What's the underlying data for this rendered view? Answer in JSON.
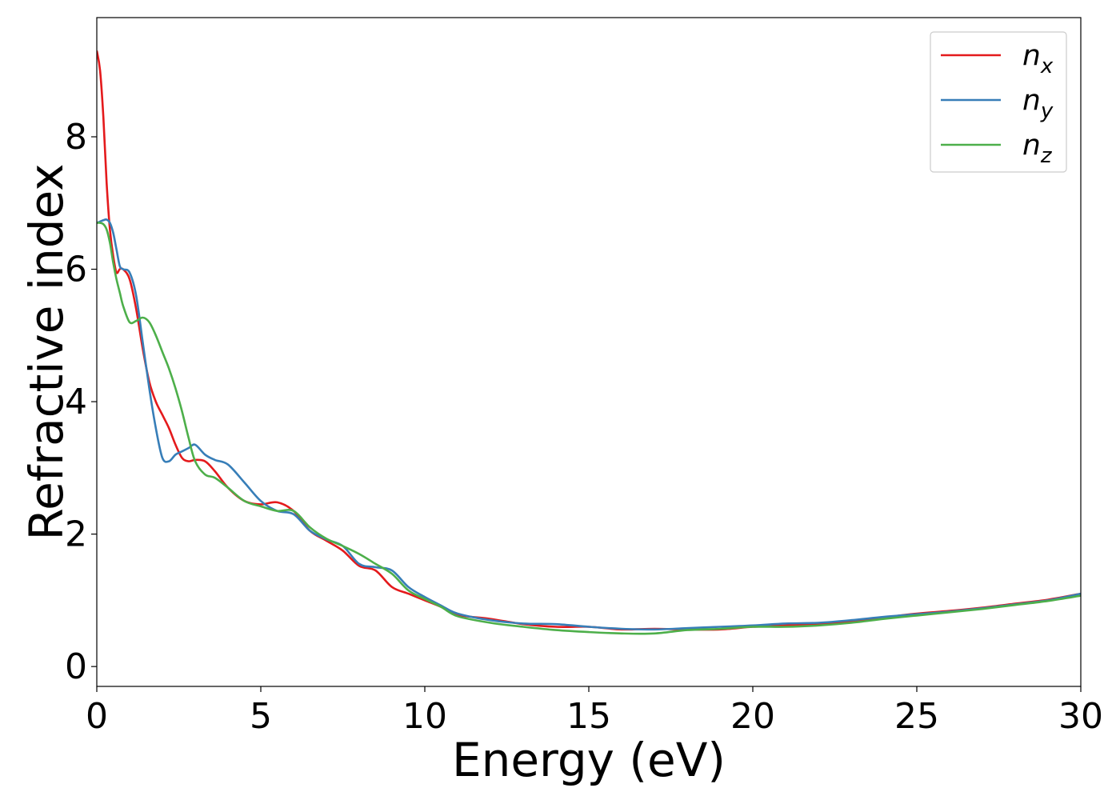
{
  "chart_data": {
    "type": "line",
    "title": "",
    "xlabel": "Energy (eV)",
    "ylabel": "Refractive index",
    "xlim": [
      0,
      30
    ],
    "ylim": [
      -0.3,
      9.8
    ],
    "xticks": [
      0,
      5,
      10,
      15,
      20,
      25,
      30
    ],
    "yticks": [
      0,
      2,
      4,
      6,
      8
    ],
    "grid": false,
    "legend_position": "top-right",
    "series": [
      {
        "name": "n",
        "subscript": "x",
        "color": "#e41a1c",
        "x": [
          0,
          0.1,
          0.2,
          0.3,
          0.4,
          0.5,
          0.6,
          0.7,
          0.8,
          1.0,
          1.2,
          1.4,
          1.6,
          1.8,
          2.0,
          2.2,
          2.4,
          2.6,
          2.8,
          3.0,
          3.3,
          3.6,
          4.0,
          4.5,
          5.0,
          5.5,
          6.0,
          6.5,
          7.0,
          7.5,
          8.0,
          8.5,
          9.0,
          9.5,
          10.0,
          10.5,
          11.0,
          12.0,
          13.0,
          14.0,
          15.0,
          16.0,
          17.0,
          18.0,
          19.0,
          20.0,
          21.0,
          22.0,
          23.0,
          24.0,
          25.0,
          26.0,
          27.0,
          28.0,
          29.0,
          30.0
        ],
        "y": [
          9.3,
          9.0,
          8.3,
          7.3,
          6.6,
          6.2,
          5.95,
          6.0,
          6.0,
          5.85,
          5.4,
          4.8,
          4.3,
          4.0,
          3.8,
          3.6,
          3.35,
          3.15,
          3.1,
          3.12,
          3.1,
          2.95,
          2.7,
          2.5,
          2.45,
          2.48,
          2.35,
          2.05,
          1.9,
          1.75,
          1.52,
          1.45,
          1.2,
          1.1,
          1.0,
          0.9,
          0.78,
          0.72,
          0.64,
          0.6,
          0.6,
          0.56,
          0.57,
          0.56,
          0.56,
          0.6,
          0.62,
          0.64,
          0.68,
          0.74,
          0.8,
          0.84,
          0.89,
          0.95,
          1.01,
          1.1
        ]
      },
      {
        "name": "n",
        "subscript": "y",
        "color": "#377eb8",
        "x": [
          0,
          0.1,
          0.2,
          0.3,
          0.4,
          0.5,
          0.6,
          0.7,
          0.8,
          1.0,
          1.2,
          1.4,
          1.6,
          1.8,
          2.0,
          2.2,
          2.4,
          2.6,
          2.8,
          3.0,
          3.3,
          3.6,
          4.0,
          4.5,
          5.0,
          5.5,
          6.0,
          6.5,
          7.0,
          7.5,
          8.0,
          8.5,
          9.0,
          9.5,
          10.0,
          10.5,
          11.0,
          12.0,
          13.0,
          14.0,
          15.0,
          16.0,
          17.0,
          18.0,
          19.0,
          20.0,
          21.0,
          22.0,
          23.0,
          24.0,
          25.0,
          26.0,
          27.0,
          28.0,
          29.0,
          30.0
        ],
        "y": [
          6.7,
          6.72,
          6.74,
          6.75,
          6.7,
          6.55,
          6.3,
          6.05,
          6.0,
          5.95,
          5.6,
          4.9,
          4.2,
          3.6,
          3.15,
          3.1,
          3.2,
          3.25,
          3.3,
          3.35,
          3.2,
          3.12,
          3.05,
          2.78,
          2.5,
          2.35,
          2.3,
          2.05,
          1.92,
          1.82,
          1.55,
          1.5,
          1.45,
          1.2,
          1.05,
          0.92,
          0.8,
          0.7,
          0.65,
          0.64,
          0.6,
          0.57,
          0.56,
          0.58,
          0.6,
          0.62,
          0.65,
          0.66,
          0.7,
          0.75,
          0.79,
          0.83,
          0.88,
          0.94,
          1.0,
          1.1
        ]
      },
      {
        "name": "n",
        "subscript": "z",
        "color": "#4daf4a",
        "x": [
          0,
          0.1,
          0.2,
          0.3,
          0.4,
          0.5,
          0.6,
          0.7,
          0.8,
          1.0,
          1.2,
          1.4,
          1.6,
          1.8,
          2.0,
          2.2,
          2.4,
          2.6,
          2.8,
          3.0,
          3.3,
          3.6,
          4.0,
          4.5,
          5.0,
          5.5,
          6.0,
          6.5,
          7.0,
          7.5,
          8.0,
          8.5,
          9.0,
          9.5,
          10.0,
          10.5,
          11.0,
          12.0,
          13.0,
          14.0,
          15.0,
          16.0,
          17.0,
          18.0,
          19.0,
          20.0,
          21.0,
          22.0,
          23.0,
          24.0,
          25.0,
          26.0,
          27.0,
          28.0,
          29.0,
          30.0
        ],
        "y": [
          6.7,
          6.7,
          6.68,
          6.6,
          6.4,
          6.1,
          5.85,
          5.65,
          5.45,
          5.2,
          5.22,
          5.27,
          5.2,
          5.0,
          4.75,
          4.5,
          4.2,
          3.85,
          3.45,
          3.1,
          2.9,
          2.85,
          2.7,
          2.5,
          2.42,
          2.35,
          2.35,
          2.1,
          1.93,
          1.82,
          1.7,
          1.55,
          1.4,
          1.15,
          1.02,
          0.9,
          0.76,
          0.66,
          0.6,
          0.55,
          0.52,
          0.5,
          0.5,
          0.55,
          0.57,
          0.6,
          0.6,
          0.62,
          0.66,
          0.72,
          0.77,
          0.82,
          0.87,
          0.93,
          0.99,
          1.07
        ]
      }
    ]
  }
}
